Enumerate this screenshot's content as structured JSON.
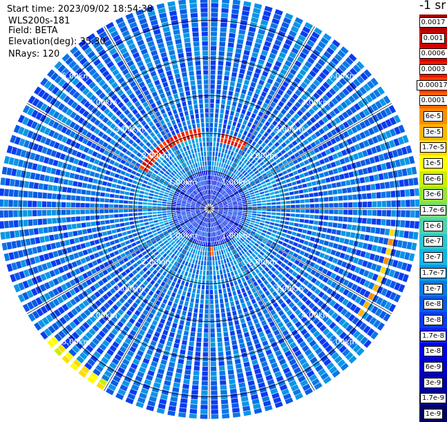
{
  "info": {
    "start_time": "Start time: 2023/09/02 18:54:38",
    "instrument": "WLS200s-181",
    "field": "Field: BETA",
    "elevation": "Elevation(deg): 35.30",
    "nrays": "NRays: 120"
  },
  "colorbar": {
    "unit_label": "-1 sr",
    "levels": [
      "0.0017",
      "0.001",
      "0.0006",
      "0.0003",
      "0.00017",
      "0.0001",
      "6e-5",
      "3e-5",
      "1.7e-5",
      "1e-5",
      "6e-6",
      "3e-6",
      "1.7e-6",
      "1e-6",
      "6e-7",
      "3e-7",
      "1.7e-7",
      "1e-7",
      "6e-8",
      "3e-8",
      "1.7e-8",
      "1e-8",
      "6e-9",
      "3e-9",
      "1.7e-9",
      "1e-9"
    ],
    "colors": [
      "#a50000",
      "#c80000",
      "#dc0000",
      "#f01400",
      "#ff3c00",
      "#ff6400",
      "#ff8c00",
      "#ffb400",
      "#ffdc00",
      "#ffff00",
      "#c8f000",
      "#96e632",
      "#78dc78",
      "#50d2aa",
      "#28c8d2",
      "#14b4e6",
      "#0a96e6",
      "#0a78e6",
      "#0a5ae6",
      "#0a3cf0",
      "#0a1ef0",
      "#0000e6",
      "#0000c8",
      "#0000aa",
      "#00008c",
      "#000064"
    ]
  },
  "range_labels": [
    "1.00km",
    "2.00km",
    "3.00km",
    "4.00km",
    "5.00km"
  ],
  "chart_data": {
    "type": "heatmap",
    "projection": "polar PPI scan",
    "field": "BETA",
    "n_rays": 120,
    "elevation_deg": 35.3,
    "range_rings_km": [
      1,
      2,
      3,
      4,
      5
    ],
    "max_range_km": 5.6,
    "spokes_deg": [
      0,
      30,
      60,
      90,
      120,
      150,
      180,
      210,
      240,
      270,
      300,
      330
    ],
    "features": [
      {
        "desc": "high backscatter arc",
        "range_km": 2.0,
        "azimuth_deg": [
          300,
          355
        ],
        "level": "0.0003"
      },
      {
        "desc": "high backscatter arc",
        "range_km": 1.9,
        "azimuth_deg": [
          10,
          30
        ],
        "level": "0.0003"
      },
      {
        "desc": "high backscatter patch",
        "range_km": 1.1,
        "azimuth_deg": [
          175,
          180
        ],
        "level": "0.0001"
      },
      {
        "desc": "high backscatter band",
        "range_km": 4.9,
        "azimuth_deg": [
          95,
          125
        ],
        "level": "3e-5"
      },
      {
        "desc": "moderate band",
        "range_km": 5.5,
        "azimuth_deg": [
          210,
          230
        ],
        "level": "1e-5"
      }
    ]
  }
}
